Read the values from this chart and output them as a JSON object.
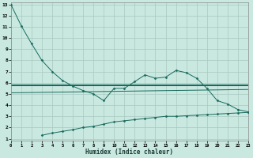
{
  "xlabel": "Humidex (Indice chaleur)",
  "bg_color": "#c8e8e0",
  "grid_color": "#a8c8c0",
  "line_color": "#1a6b5e",
  "line1_x": [
    0,
    1,
    2,
    3,
    4,
    5,
    6,
    7,
    8,
    9,
    10,
    11,
    12,
    13,
    14,
    15,
    16,
    17,
    18,
    19,
    20,
    21,
    22,
    23
  ],
  "line1_y": [
    13,
    11.1,
    9.5,
    8.0,
    7.0,
    6.2,
    5.7,
    5.3,
    5.0,
    4.4,
    5.5,
    5.5,
    6.1,
    6.7,
    6.4,
    6.5,
    7.1,
    6.9,
    6.4,
    5.5,
    4.4,
    4.1,
    3.6,
    3.4
  ],
  "line2_x": [
    0,
    23
  ],
  "line2_y": [
    5.8,
    5.8
  ],
  "line3_x": [
    3,
    4,
    5,
    6,
    7,
    8,
    9,
    10,
    11,
    12,
    13,
    14,
    15,
    16,
    17,
    18,
    19,
    20,
    21,
    22,
    23
  ],
  "line3_y": [
    1.3,
    1.5,
    1.65,
    1.8,
    2.0,
    2.1,
    2.3,
    2.5,
    2.6,
    2.7,
    2.8,
    2.9,
    3.0,
    3.0,
    3.05,
    3.1,
    3.15,
    3.2,
    3.25,
    3.3,
    3.35
  ],
  "line4_x": [
    0,
    23
  ],
  "line4_y": [
    5.1,
    5.4
  ],
  "xlim": [
    0,
    23
  ],
  "ylim": [
    0.8,
    13.2
  ],
  "yticks": [
    1,
    2,
    3,
    4,
    5,
    6,
    7,
    8,
    9,
    10,
    11,
    12,
    13
  ],
  "xticks": [
    0,
    1,
    2,
    3,
    4,
    5,
    6,
    7,
    8,
    9,
    10,
    11,
    12,
    13,
    14,
    15,
    16,
    17,
    18,
    19,
    20,
    21,
    22,
    23
  ]
}
